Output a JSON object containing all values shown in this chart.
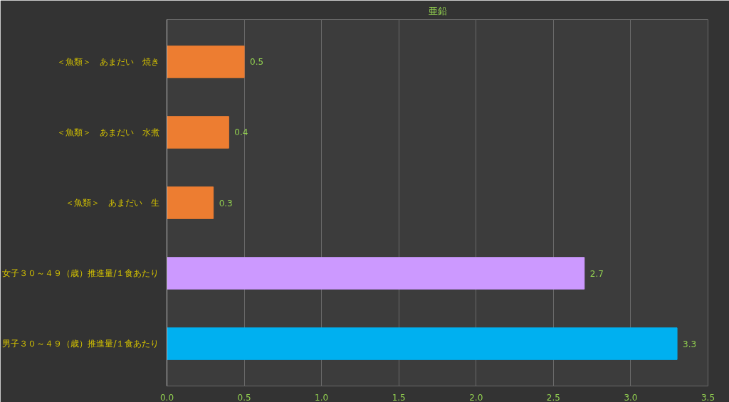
{
  "chart_data": {
    "type": "bar",
    "orientation": "horizontal",
    "title": "亜鉛",
    "categories": [
      "＜魚類＞　あまだい　焼き",
      "＜魚類＞　あまだい　水煮",
      "＜魚類＞　あまだい　生",
      "女子３０～４９（歳）推進量/１食あたり",
      "男子３０～４９（歳）推進量/１食あたり"
    ],
    "values": [
      0.5,
      0.4,
      0.3,
      2.7,
      3.3
    ],
    "colors": [
      "#ed7d31",
      "#ed7d31",
      "#ed7d31",
      "#cc99ff",
      "#00b0f0"
    ],
    "xlim": [
      0,
      3.5
    ],
    "xticks": [
      {
        "value": 0,
        "label": "0.0"
      },
      {
        "value": 0.5,
        "label": "0.5"
      },
      {
        "value": 1,
        "label": "1.0"
      },
      {
        "value": 1.5,
        "label": "1.5"
      },
      {
        "value": 2,
        "label": "2.0"
      },
      {
        "value": 2.5,
        "label": "2.5"
      },
      {
        "value": 3,
        "label": "3.0"
      },
      {
        "value": 3.5,
        "label": "3.5"
      }
    ],
    "grid": "x",
    "data_labels": true
  }
}
